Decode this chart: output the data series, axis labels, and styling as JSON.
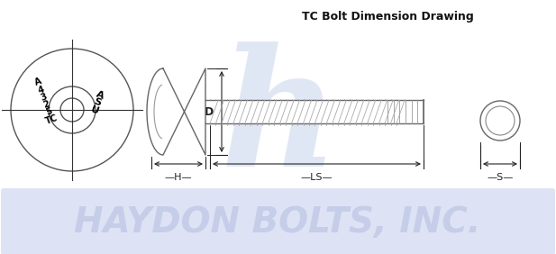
{
  "title": "TC Bolt Dimension Drawing",
  "title_fontsize": 9,
  "title_fontweight": "bold",
  "background_color": "#ffffff",
  "banner_color": "#dde3f5",
  "banner_text": "HAYDON BOLTS, INC.",
  "banner_text_color": "#c5cde8",
  "banner_text_fontsize": 28,
  "dim_line_color": "#222222",
  "drawing_color": "#999999",
  "label_D": "D",
  "label_H": "H",
  "label_LS": "LS",
  "label_S": "S",
  "watermark_color": "#c8d4ec",
  "face_text_left": "A\n4\n3\n2\n5\nTC",
  "face_text_right": "A\nS\nU"
}
